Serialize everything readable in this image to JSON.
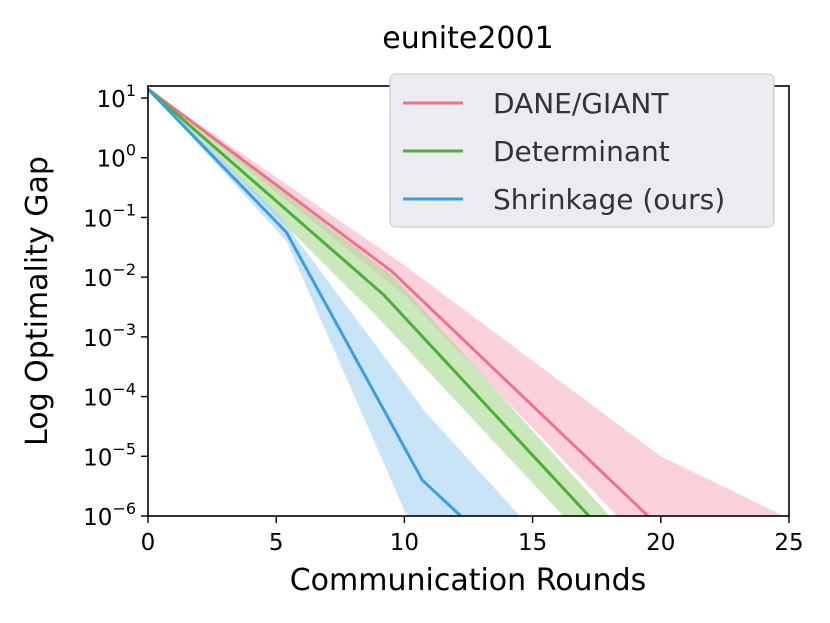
{
  "chart_data": {
    "type": "line",
    "title": "eunite2001",
    "xlabel": "Communication Rounds",
    "ylabel": "Log Optimality Gap",
    "xlim": [
      0,
      25
    ],
    "ylim_log10": [
      -6,
      1.6
    ],
    "y_scale": "log",
    "grid": false,
    "legend_position": "top-right",
    "x_ticks": [
      0,
      5,
      10,
      15,
      20,
      25
    ],
    "x_tick_labels": [
      "0",
      "5",
      "10",
      "15",
      "20",
      "25"
    ],
    "y_ticks_exp": [
      1,
      0,
      -1,
      -2,
      -3,
      -4,
      -5,
      -6
    ],
    "y_tick_labels": [
      {
        "base": "10",
        "exp": "1"
      },
      {
        "base": "10",
        "exp": "0"
      },
      {
        "base": "10",
        "exp": "−1"
      },
      {
        "base": "10",
        "exp": "−2"
      },
      {
        "base": "10",
        "exp": "−3"
      },
      {
        "base": "10",
        "exp": "−4"
      },
      {
        "base": "10",
        "exp": "−5"
      },
      {
        "base": "10",
        "exp": "−6"
      }
    ],
    "series": [
      {
        "name": "DANE/GIANT",
        "color": "#f0718a",
        "band_color": "#f8b4c3",
        "mean_log10": [
          [
            0,
            1.15
          ],
          [
            9.5,
            -1.9
          ],
          [
            19.5,
            -6
          ]
        ],
        "upper_log10": [
          [
            0,
            1.15
          ],
          [
            10,
            -1.8
          ],
          [
            20,
            -5.0
          ],
          [
            24.8,
            -6
          ]
        ],
        "lower_log10": [
          [
            0,
            1.15
          ],
          [
            10,
            -2.3
          ],
          [
            18.3,
            -6
          ]
        ]
      },
      {
        "name": "Determinant",
        "color": "#4caf3a",
        "band_color": "#a8d890",
        "mean_log10": [
          [
            0,
            1.15
          ],
          [
            9.2,
            -2.3
          ],
          [
            17.2,
            -6
          ]
        ],
        "upper_log10": [
          [
            0,
            1.15
          ],
          [
            9.6,
            -2.0
          ],
          [
            18,
            -6
          ]
        ],
        "lower_log10": [
          [
            0,
            1.15
          ],
          [
            8.8,
            -2.6
          ],
          [
            16.2,
            -6
          ]
        ]
      },
      {
        "name": "Shrinkage (ours)",
        "color": "#3a9ee4",
        "band_color": "#a5d1f2",
        "mean_log10": [
          [
            0,
            1.15
          ],
          [
            5.4,
            -1.25
          ],
          [
            10.7,
            -5.4
          ],
          [
            12.2,
            -6
          ]
        ],
        "upper_log10": [
          [
            0,
            1.15
          ],
          [
            5.0,
            -0.9
          ],
          [
            10.8,
            -4.25
          ],
          [
            14.5,
            -6
          ]
        ],
        "lower_log10": [
          [
            0,
            1.15
          ],
          [
            5.4,
            -1.4
          ],
          [
            10.1,
            -6
          ]
        ]
      }
    ]
  }
}
